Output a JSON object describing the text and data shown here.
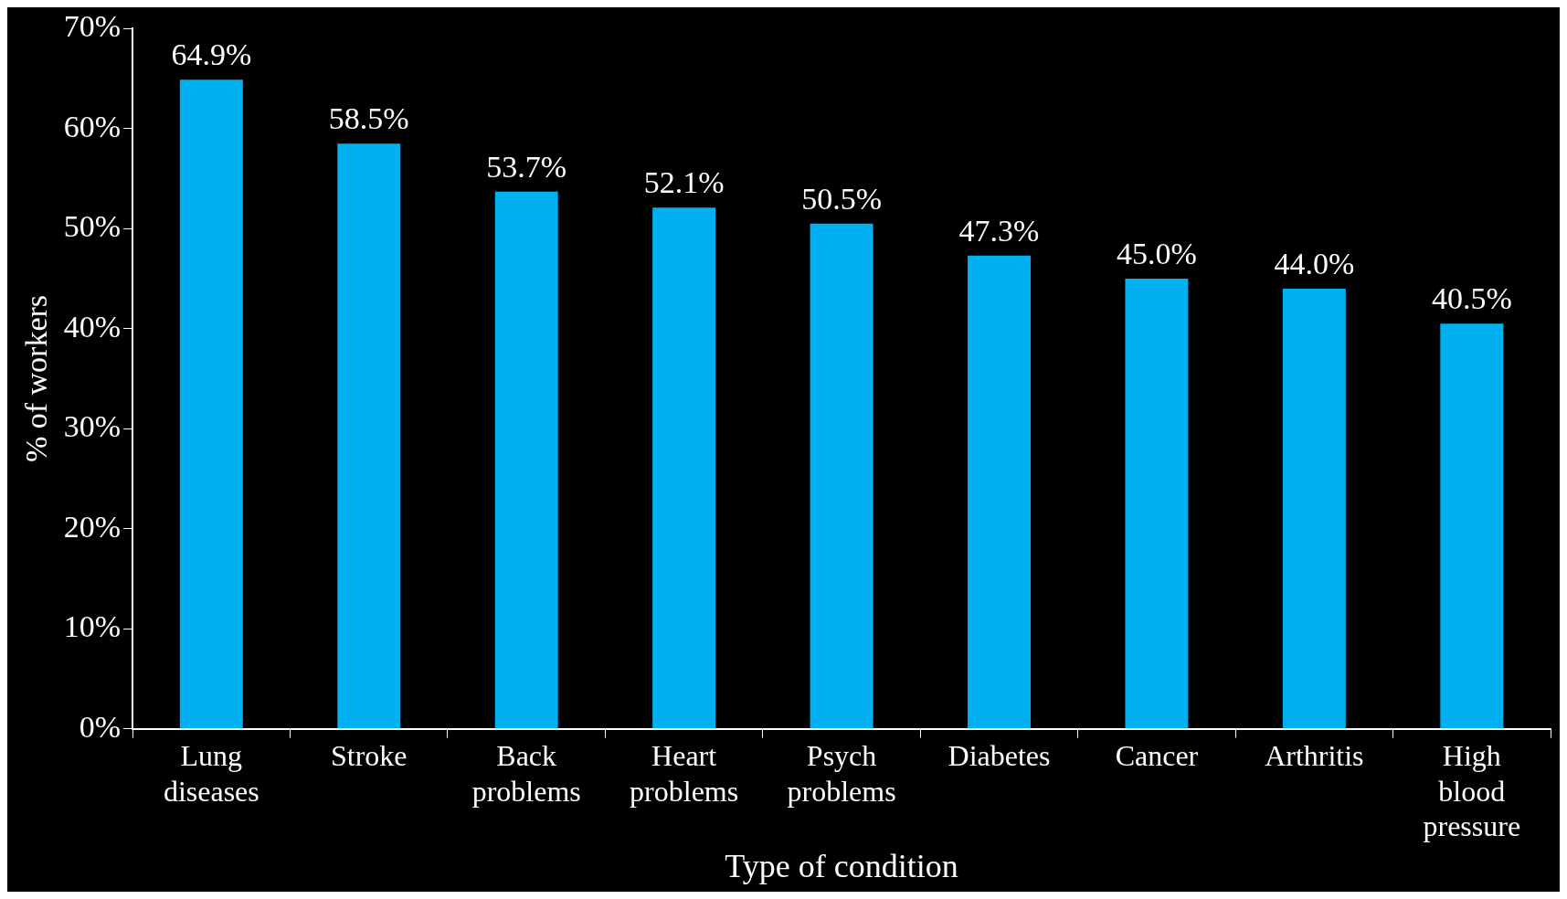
{
  "chart_data": {
    "type": "bar",
    "xlabel": "Type of condition",
    "ylabel": "% of workers",
    "categories": [
      "Lung diseases",
      "Stroke",
      "Back problems",
      "Heart problems",
      "Psych problems",
      "Diabetes",
      "Cancer",
      "Arthritis",
      "High blood pressure"
    ],
    "values": [
      64.9,
      58.5,
      53.7,
      52.1,
      50.5,
      47.3,
      45.0,
      44.0,
      40.5
    ],
    "value_labels": [
      "64.9%",
      "58.5%",
      "53.7%",
      "52.1%",
      "50.5%",
      "47.3%",
      "45.0%",
      "44.0%",
      "40.5%"
    ],
    "color": "#00b0f0",
    "ylim": [
      0,
      70
    ],
    "yticks": [
      {
        "value": 0,
        "label": "0%"
      },
      {
        "value": 10,
        "label": "10%"
      },
      {
        "value": 20,
        "label": "20%"
      },
      {
        "value": 30,
        "label": "30%"
      },
      {
        "value": 40,
        "label": "40%"
      },
      {
        "value": 50,
        "label": "50%"
      },
      {
        "value": 60,
        "label": "60%"
      },
      {
        "value": 70,
        "label": "70%"
      }
    ],
    "grid": false,
    "legend": false
  }
}
